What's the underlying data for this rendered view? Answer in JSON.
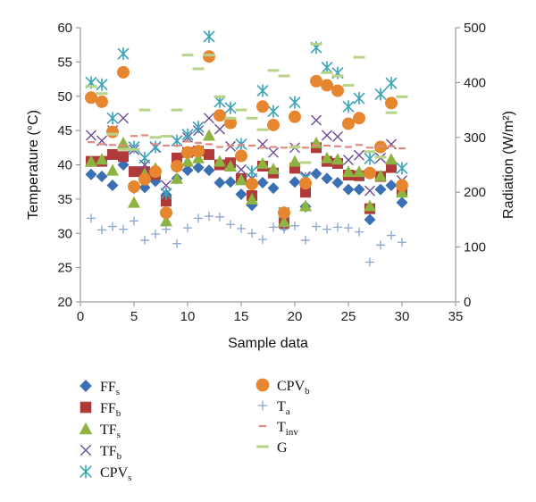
{
  "chart_data": {
    "type": "scatter",
    "x_label": "Sample data",
    "y_label_left": "Temperature (°C)",
    "y_label_right": "Radiation (W/m²)",
    "xlim": [
      0,
      35
    ],
    "ylim_left": [
      20,
      60
    ],
    "ylim_right": [
      0,
      500
    ],
    "x_ticks": [
      "0",
      "5",
      "10",
      "15",
      "20",
      "25",
      "30",
      "35"
    ],
    "y_ticks_left": [
      "20",
      "25",
      "30",
      "35",
      "40",
      "45",
      "50",
      "55",
      "60"
    ],
    "y_ticks_right": [
      "0",
      "100",
      "200",
      "300",
      "400",
      "500"
    ],
    "grid": false,
    "legend_position": "bottom",
    "series": [
      {
        "key": "FFs",
        "label": "FF",
        "sub": "s",
        "axis": "left",
        "marker": "diamond",
        "color": "#3a6fb4",
        "x": [
          1,
          2,
          3,
          4,
          5,
          6,
          7,
          8,
          9,
          10,
          11,
          12,
          13,
          14,
          15,
          16,
          17,
          18,
          19,
          20,
          21,
          22,
          23,
          24,
          25,
          26,
          27,
          28,
          29,
          30
        ],
        "y": [
          38.6,
          38.3,
          37.0,
          40.0,
          36.6,
          36.7,
          37.6,
          35.6,
          38.0,
          39.2,
          39.6,
          39.2,
          37.4,
          37.5,
          35.7,
          34.1,
          37.4,
          36.6,
          31.1,
          37.5,
          33.9,
          38.7,
          38.0,
          37.4,
          36.4,
          36.4,
          32.0,
          36.4,
          37.0,
          34.5
        ]
      },
      {
        "key": "FFb",
        "label": "FF",
        "sub": "b",
        "axis": "left",
        "marker": "square",
        "color": "#b03a3a",
        "x": [
          1,
          2,
          3,
          4,
          5,
          6,
          7,
          8,
          9,
          10,
          11,
          12,
          13,
          14,
          15,
          16,
          17,
          18,
          19,
          20,
          21,
          22,
          23,
          24,
          25,
          26,
          27,
          28,
          29,
          30
        ],
        "y": [
          40.5,
          40.5,
          41.5,
          41.2,
          39.0,
          39.0,
          38.6,
          34.7,
          41.0,
          41.8,
          42.0,
          41.5,
          40.0,
          40.3,
          38.0,
          35.5,
          39.8,
          38.8,
          31.5,
          39.5,
          36.0,
          42.5,
          40.5,
          40.2,
          38.5,
          38.4,
          33.6,
          38.3,
          39.6,
          36.1
        ]
      },
      {
        "key": "TFs",
        "label": "TF",
        "sub": "s",
        "axis": "left",
        "marker": "triangle",
        "color": "#8db440",
        "x": [
          1,
          2,
          3,
          4,
          5,
          6,
          7,
          8,
          9,
          10,
          11,
          12,
          13,
          14,
          15,
          16,
          17,
          18,
          19,
          20,
          21,
          22,
          23,
          24,
          25,
          26,
          27,
          28,
          29,
          30
        ],
        "y": [
          40.5,
          40.8,
          39.2,
          43.2,
          34.5,
          38.7,
          39.5,
          31.8,
          38.0,
          40.5,
          41.0,
          44.3,
          40.5,
          39.8,
          37.8,
          35.0,
          40.2,
          39.4,
          31.7,
          40.5,
          34.0,
          43.2,
          41.0,
          40.8,
          39.0,
          39.0,
          34.0,
          38.4,
          40.8,
          36.0
        ]
      },
      {
        "key": "TFb",
        "label": "TF",
        "sub": "b",
        "axis": "left",
        "marker": "x",
        "color": "#6c4a94",
        "x": [
          1,
          2,
          3,
          4,
          5,
          6,
          7,
          8,
          9,
          10,
          11,
          12,
          13,
          14,
          15,
          16,
          17,
          18,
          19,
          20,
          21,
          22,
          23,
          24,
          25,
          26,
          27,
          28,
          29,
          30
        ],
        "y": [
          44.3,
          43.5,
          45.0,
          46.8,
          42.2,
          40.0,
          42.5,
          37.0,
          43.5,
          44.0,
          45.0,
          46.8,
          45.2,
          42.7,
          39.3,
          38.0,
          43.0,
          41.8,
          33.0,
          42.5,
          38.3,
          46.5,
          44.3,
          44.1,
          40.7,
          41.4,
          36.2,
          41.0,
          43.0,
          37.7
        ]
      },
      {
        "key": "CPVs",
        "label": "CPV",
        "sub": "s",
        "axis": "left",
        "marker": "star",
        "color": "#3aa3b8",
        "x": [
          1,
          2,
          3,
          4,
          5,
          6,
          7,
          8,
          9,
          10,
          11,
          12,
          13,
          14,
          15,
          16,
          17,
          18,
          19,
          20,
          21,
          22,
          23,
          24,
          25,
          26,
          27,
          28,
          29,
          30
        ],
        "y": [
          52.0,
          51.7,
          46.8,
          56.2,
          42.6,
          41.0,
          42.6,
          35.8,
          43.5,
          44.4,
          45.5,
          58.7,
          49.2,
          48.3,
          43.0,
          39.0,
          50.8,
          47.8,
          33.0,
          49.1,
          38.0,
          57.1,
          54.2,
          53.4,
          48.5,
          49.7,
          40.9,
          50.3,
          51.9,
          39.5
        ]
      },
      {
        "key": "CPVb",
        "label": "CPV",
        "sub": "b",
        "axis": "left",
        "marker": "circle",
        "color": "#e6862f",
        "x": [
          1,
          2,
          3,
          4,
          5,
          6,
          7,
          8,
          9,
          10,
          11,
          12,
          13,
          14,
          15,
          16,
          17,
          18,
          19,
          20,
          21,
          22,
          23,
          24,
          25,
          26,
          27,
          28,
          29,
          30
        ],
        "y": [
          49.8,
          49.2,
          44.8,
          53.5,
          36.8,
          37.9,
          39.0,
          33.0,
          39.8,
          41.8,
          42.0,
          55.8,
          47.2,
          46.1,
          41.3,
          37.2,
          48.5,
          45.8,
          33.0,
          47.0,
          37.3,
          52.2,
          51.6,
          50.8,
          46.0,
          46.8,
          38.8,
          42.6,
          49.0,
          37.0
        ]
      },
      {
        "key": "Ta",
        "label": "T",
        "sub": "a",
        "axis": "left",
        "marker": "plus",
        "color": "#8aa4cc",
        "x": [
          1,
          2,
          3,
          4,
          5,
          6,
          7,
          8,
          9,
          10,
          11,
          12,
          13,
          14,
          15,
          16,
          17,
          18,
          19,
          20,
          21,
          22,
          23,
          24,
          25,
          26,
          27,
          28,
          29,
          30
        ],
        "y": [
          32.2,
          30.5,
          31.0,
          30.6,
          31.8,
          29.0,
          29.9,
          30.6,
          28.5,
          30.8,
          32.2,
          32.5,
          32.4,
          31.3,
          30.7,
          30.0,
          29.1,
          30.9,
          30.6,
          31.1,
          29.0,
          31.0,
          30.6,
          30.9,
          30.8,
          30.2,
          25.8,
          28.3,
          29.7,
          28.7
        ]
      },
      {
        "key": "Tinv",
        "label": "T",
        "sub": "inv",
        "axis": "left",
        "marker": "dash",
        "color": "#e08a80",
        "x": [
          1,
          2,
          3,
          4,
          5,
          6,
          7,
          8,
          9,
          10,
          11,
          12,
          13,
          14,
          15,
          16,
          17,
          18,
          19,
          20,
          21,
          22,
          23,
          24,
          25,
          26,
          27,
          28,
          29,
          30
        ],
        "y": [
          43.3,
          43.0,
          42.9,
          42.8,
          44.2,
          44.3,
          43.0,
          42.8,
          42.8,
          43.4,
          43.2,
          43.0,
          42.6,
          42.8,
          42.9,
          42.8,
          42.5,
          42.6,
          42.5,
          42.7,
          42.5,
          42.8,
          42.8,
          42.7,
          42.6,
          42.9,
          42.5,
          42.7,
          42.7,
          42.4
        ]
      },
      {
        "key": "G",
        "label": "G",
        "sub": "",
        "axis": "right",
        "marker": "hbar",
        "color": "#b7d48a",
        "x": [
          1,
          2,
          3,
          4,
          5,
          6,
          7,
          8,
          9,
          10,
          11,
          12,
          13,
          14,
          15,
          16,
          17,
          18,
          19,
          20,
          21,
          22,
          23,
          24,
          25,
          26,
          27,
          28,
          29,
          30
        ],
        "y": [
          393,
          380,
          306,
          278,
          278,
          350,
          300,
          302,
          350,
          450,
          425,
          450,
          374,
          335,
          350,
          335,
          314,
          422,
          412,
          282,
          254,
          470,
          418,
          412,
          395,
          446,
          274,
          264,
          345,
          374
        ]
      }
    ]
  }
}
